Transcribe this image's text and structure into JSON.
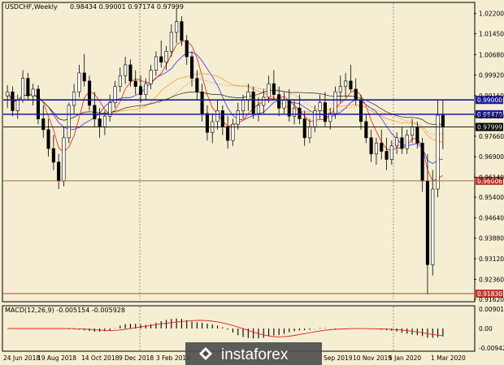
{
  "header": {
    "symbol": "USDCHF,Weekly",
    "ohlc": "0.98434 0.99001 0.97174 0.97999"
  },
  "macd": {
    "label": "MACD(12,26,9) -0.005154 -0.005928",
    "ticks": [
      "0.009015",
      "0.00",
      "-0.009424"
    ]
  },
  "watermark": "instaforex",
  "chart_data": {
    "type": "candlestick",
    "price_ticks": [
      "1.02200",
      "1.01450",
      "1.00680",
      "0.99920",
      "0.99160",
      "0.98400",
      "0.97660",
      "0.96900",
      "0.96140",
      "0.95400",
      "0.94640",
      "0.93880",
      "0.93120",
      "0.92360",
      "0.91620"
    ],
    "price_levels": [
      {
        "name": "upper",
        "value": 0.99,
        "label": "0.99000",
        "color": "#1a1aa0",
        "bg": "#1a1aa0"
      },
      {
        "name": "middle",
        "value": 0.9847,
        "label": "0.98470",
        "color": "#1a1aa0",
        "bg": "#1a1aa0"
      },
      {
        "name": "current",
        "value": 0.97999,
        "label": "0.97999",
        "color": "#000000",
        "bg": "#000000"
      },
      {
        "name": "lower",
        "value": 0.96006,
        "label": "0.96006",
        "color": "#a0522d",
        "bg": "#c0392b"
      },
      {
        "name": "low",
        "value": 0.9183,
        "label": "0.91830",
        "color": "#c0392b",
        "bg": "#c0392b"
      }
    ],
    "date_ticks": [
      "24 Jun 2018",
      "19 Aug 2018",
      "14 Oct 2018",
      "9 Dec 2018",
      "3 Feb 2019",
      "Sep 2019",
      "10 Nov 2019",
      "5 Jan 2020",
      "1 Mar 2020"
    ],
    "price_range": [
      0.9162,
      1.0258
    ],
    "candles": [
      [
        0.9915,
        0.9955,
        0.987,
        0.993
      ],
      [
        0.993,
        0.995,
        0.984,
        0.986
      ],
      [
        0.986,
        0.992,
        0.983,
        0.99
      ],
      [
        0.99,
        1.001,
        0.989,
        0.998
      ],
      [
        0.998,
        1.0,
        0.99,
        0.9915
      ],
      [
        0.9915,
        0.996,
        0.988,
        0.994
      ],
      [
        0.994,
        0.9955,
        0.981,
        0.983
      ],
      [
        0.983,
        0.988,
        0.976,
        0.979
      ],
      [
        0.979,
        0.983,
        0.969,
        0.972
      ],
      [
        0.972,
        0.977,
        0.964,
        0.967
      ],
      [
        0.967,
        0.97,
        0.957,
        0.96
      ],
      [
        0.96,
        0.98,
        0.958,
        0.976
      ],
      [
        0.976,
        0.989,
        0.974,
        0.988
      ],
      [
        0.988,
        0.996,
        0.985,
        0.993
      ],
      [
        0.993,
        1.003,
        0.991,
        1.0
      ],
      [
        1.0,
        1.007,
        0.995,
        0.997
      ],
      [
        0.997,
        0.999,
        0.986,
        0.988
      ],
      [
        0.988,
        0.993,
        0.98,
        0.983
      ],
      [
        0.983,
        0.987,
        0.976,
        0.98
      ],
      [
        0.98,
        0.986,
        0.977,
        0.984
      ],
      [
        0.984,
        0.992,
        0.982,
        0.989
      ],
      [
        0.989,
        0.997,
        0.987,
        0.995
      ],
      [
        0.995,
        1.002,
        0.993,
        0.999
      ],
      [
        0.999,
        1.006,
        0.996,
        1.003
      ],
      [
        1.003,
        1.005,
        0.995,
        0.997
      ],
      [
        0.997,
        1.001,
        0.992,
        0.995
      ],
      [
        0.995,
        0.999,
        0.989,
        0.992
      ],
      [
        0.992,
        0.998,
        0.99,
        0.996
      ],
      [
        0.996,
        1.003,
        0.994,
        1.001
      ],
      [
        1.001,
        1.008,
        0.999,
        1.006
      ],
      [
        1.006,
        1.012,
        1.002,
        1.004
      ],
      [
        1.004,
        1.01,
        1.001,
        1.008
      ],
      [
        1.008,
        1.018,
        1.006,
        1.015
      ],
      [
        1.015,
        1.024,
        1.011,
        1.019
      ],
      [
        1.019,
        1.021,
        1.01,
        1.012
      ],
      [
        1.012,
        1.014,
        1.003,
        1.006
      ],
      [
        1.006,
        1.008,
        0.995,
        0.998
      ],
      [
        0.998,
        1.001,
        0.99,
        0.993
      ],
      [
        0.993,
        0.996,
        0.982,
        0.985
      ],
      [
        0.985,
        0.988,
        0.975,
        0.978
      ],
      [
        0.978,
        0.985,
        0.974,
        0.982
      ],
      [
        0.982,
        0.99,
        0.979,
        0.986
      ],
      [
        0.986,
        0.988,
        0.977,
        0.98
      ],
      [
        0.98,
        0.984,
        0.972,
        0.975
      ],
      [
        0.975,
        0.983,
        0.973,
        0.981
      ],
      [
        0.981,
        0.989,
        0.979,
        0.986
      ],
      [
        0.986,
        0.992,
        0.983,
        0.99
      ],
      [
        0.99,
        0.996,
        0.986,
        0.993
      ],
      [
        0.993,
        0.995,
        0.983,
        0.985
      ],
      [
        0.985,
        0.991,
        0.982,
        0.988
      ],
      [
        0.988,
        0.994,
        0.985,
        0.991
      ],
      [
        0.991,
        0.999,
        0.989,
        0.996
      ],
      [
        0.996,
        1.001,
        0.99,
        0.992
      ],
      [
        0.992,
        0.995,
        0.984,
        0.987
      ],
      [
        0.987,
        0.993,
        0.985,
        0.99
      ],
      [
        0.99,
        0.994,
        0.982,
        0.984
      ],
      [
        0.984,
        0.99,
        0.981,
        0.987
      ],
      [
        0.987,
        0.992,
        0.981,
        0.983
      ],
      [
        0.983,
        0.986,
        0.973,
        0.976
      ],
      [
        0.976,
        0.983,
        0.974,
        0.98
      ],
      [
        0.98,
        0.988,
        0.978,
        0.986
      ],
      [
        0.986,
        0.992,
        0.983,
        0.989
      ],
      [
        0.989,
        0.993,
        0.98,
        0.982
      ],
      [
        0.982,
        0.987,
        0.979,
        0.985
      ],
      [
        0.985,
        0.995,
        0.983,
        0.993
      ],
      [
        0.993,
        0.999,
        0.989,
        0.995
      ],
      [
        0.995,
        1.0,
        0.991,
        0.997
      ],
      [
        0.997,
        1.003,
        0.993,
        0.994
      ],
      [
        0.994,
        0.998,
        0.988,
        0.99
      ],
      [
        0.99,
        0.992,
        0.979,
        0.982
      ],
      [
        0.982,
        0.985,
        0.974,
        0.976
      ],
      [
        0.976,
        0.979,
        0.967,
        0.97
      ],
      [
        0.97,
        0.976,
        0.966,
        0.974
      ],
      [
        0.974,
        0.979,
        0.968,
        0.971
      ],
      [
        0.971,
        0.976,
        0.964,
        0.968
      ],
      [
        0.968,
        0.975,
        0.966,
        0.973
      ],
      [
        0.973,
        0.978,
        0.97,
        0.976
      ],
      [
        0.976,
        0.98,
        0.97,
        0.972
      ],
      [
        0.972,
        0.979,
        0.97,
        0.977
      ],
      [
        0.977,
        0.983,
        0.974,
        0.98
      ],
      [
        0.98,
        0.982,
        0.972,
        0.974
      ],
      [
        0.974,
        0.976,
        0.956,
        0.96
      ],
      [
        0.96,
        0.97,
        0.918,
        0.929
      ],
      [
        0.929,
        0.964,
        0.925,
        0.957
      ],
      [
        0.957,
        0.99,
        0.954,
        0.9843
      ],
      [
        0.98434,
        0.99001,
        0.97174,
        0.97999
      ]
    ]
  }
}
